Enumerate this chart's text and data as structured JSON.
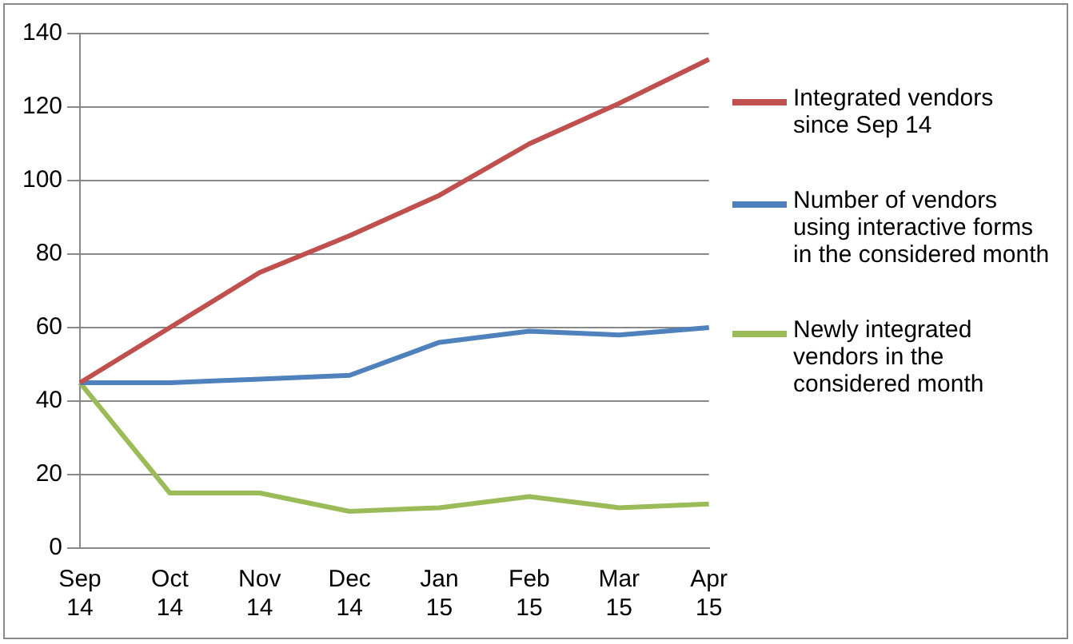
{
  "chart_data": {
    "type": "line",
    "categories": [
      "Sep 14",
      "Oct 14",
      "Nov 14",
      "Dec 14",
      "Jan 15",
      "Feb 15",
      "Mar 15",
      "Apr 15"
    ],
    "series": [
      {
        "name": "Integrated vendors since Sep 14",
        "color": "#c0504d",
        "values": [
          45,
          60,
          75,
          85,
          96,
          110,
          121,
          133
        ]
      },
      {
        "name": "Number of vendors using interactive forms in the considered month",
        "color": "#4f81bd",
        "values": [
          45,
          45,
          46,
          47,
          56,
          59,
          58,
          60
        ]
      },
      {
        "name": "Newly integrated vendors in the considered month",
        "color": "#9bbb59",
        "values": [
          45,
          15,
          15,
          10,
          11,
          14,
          11,
          12
        ]
      }
    ],
    "ylim": [
      0,
      140
    ],
    "yticks": [
      0,
      20,
      40,
      60,
      80,
      100,
      120,
      140
    ],
    "grid": "y",
    "legend": "right",
    "marker": "none",
    "line_style": "solid"
  }
}
